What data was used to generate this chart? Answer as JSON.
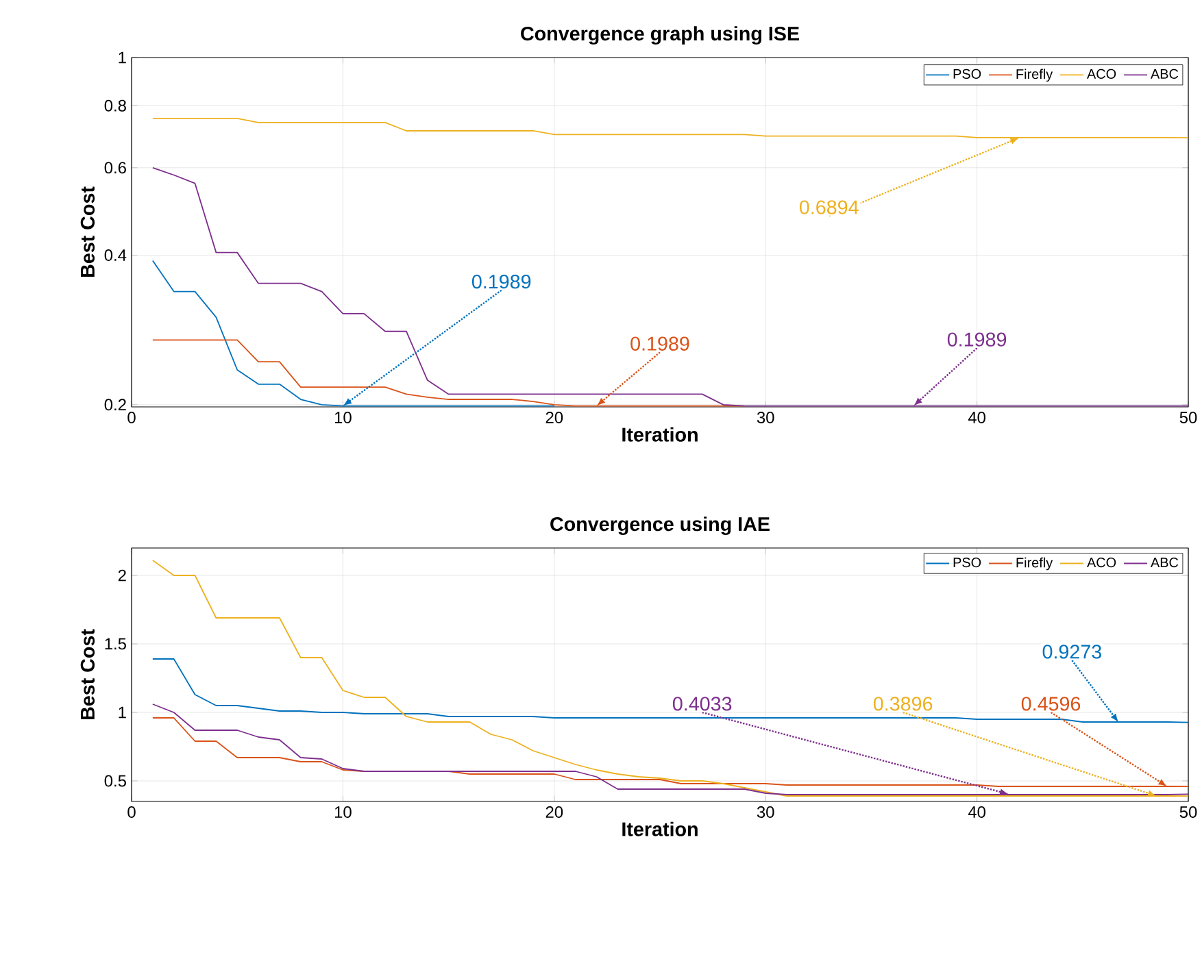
{
  "chart_data": [
    {
      "type": "line",
      "title": "Convergence graph using ISE",
      "xlabel": "Iteration",
      "ylabel": "Best Cost",
      "log": "y",
      "grid": true,
      "legend": "top right",
      "marker": "none",
      "line_style": "solid",
      "xlim": [
        0,
        50
      ],
      "xticks": [
        0,
        10,
        20,
        30,
        40,
        50
      ],
      "ylim": [
        0.198,
        1
      ],
      "yticks": [
        0.2,
        0.4,
        0.6,
        0.8,
        1
      ],
      "x": [
        1,
        2,
        3,
        4,
        5,
        6,
        7,
        8,
        9,
        10,
        11,
        12,
        13,
        14,
        15,
        16,
        17,
        18,
        19,
        20,
        21,
        22,
        23,
        24,
        25,
        26,
        27,
        28,
        29,
        30,
        31,
        32,
        33,
        34,
        35,
        36,
        37,
        38,
        39,
        40,
        41,
        42,
        43,
        44,
        45,
        46,
        47,
        48,
        49,
        50
      ],
      "series": [
        {
          "name": "PSO",
          "color": "#0072bd",
          "values": [
            0.39,
            0.338,
            0.338,
            0.3,
            0.235,
            0.22,
            0.22,
            0.205,
            0.2,
            0.1989,
            0.1989,
            0.1989,
            0.1989,
            0.1989,
            0.1989,
            0.1989,
            0.1989,
            0.1989,
            0.1989,
            0.1989,
            null,
            null,
            null,
            null,
            null,
            null,
            null,
            null,
            null,
            null,
            null,
            null,
            null,
            null,
            null,
            null,
            null,
            null,
            null,
            null,
            null,
            null,
            null,
            null,
            null,
            null,
            null,
            null,
            null,
            null
          ]
        },
        {
          "name": "Firefly",
          "color": "#d95319",
          "values": [
            0.27,
            0.27,
            0.27,
            0.27,
            0.27,
            0.244,
            0.244,
            0.217,
            0.217,
            0.217,
            0.217,
            0.217,
            0.21,
            0.207,
            0.205,
            0.205,
            0.205,
            0.205,
            0.203,
            0.2,
            0.1989,
            0.1989,
            0.1989,
            0.1989,
            0.1989,
            0.1989,
            0.1989,
            0.1989,
            0.1989,
            null,
            null,
            null,
            null,
            null,
            null,
            null,
            null,
            null,
            null,
            null,
            null,
            null,
            null,
            null,
            null,
            null,
            null,
            null,
            null,
            null
          ]
        },
        {
          "name": "ACO",
          "color": "#edb120",
          "values": [
            0.754,
            0.754,
            0.754,
            0.754,
            0.754,
            0.74,
            0.74,
            0.74,
            0.74,
            0.74,
            0.74,
            0.74,
            0.712,
            0.712,
            0.712,
            0.712,
            0.712,
            0.712,
            0.712,
            0.7,
            0.7,
            0.7,
            0.7,
            0.7,
            0.7,
            0.7,
            0.7,
            0.7,
            0.7,
            0.695,
            0.695,
            0.695,
            0.695,
            0.695,
            0.695,
            0.695,
            0.695,
            0.695,
            0.695,
            0.69,
            0.69,
            0.69,
            0.69,
            0.69,
            0.69,
            0.69,
            0.69,
            0.69,
            0.69,
            0.6894
          ]
        },
        {
          "name": "ABC",
          "color": "#7e2f8e",
          "values": [
            0.6,
            0.58,
            0.558,
            0.405,
            0.405,
            0.351,
            0.351,
            0.351,
            0.338,
            0.305,
            0.305,
            0.281,
            0.281,
            0.224,
            0.21,
            0.21,
            0.21,
            0.21,
            0.21,
            0.21,
            0.21,
            0.21,
            0.21,
            0.21,
            0.21,
            0.21,
            0.21,
            0.2,
            0.1989,
            0.1989,
            0.1989,
            0.1989,
            0.1989,
            0.1989,
            0.1989,
            0.1989,
            0.1989,
            0.1989,
            0.1989,
            0.1989,
            0.1989,
            0.1989,
            0.1989,
            0.1989,
            0.1989,
            0.1989,
            0.1989,
            0.1989,
            0.1989,
            0.1989
          ]
        }
      ],
      "annotations": [
        {
          "text": "0.1989",
          "x": 10,
          "y": 0.1989
        },
        {
          "text": "0.1989",
          "x": 22,
          "y": 0.1989
        },
        {
          "text": "0.6894",
          "x": 42,
          "y": 0.6894
        },
        {
          "text": "0.1989",
          "x": 37,
          "y": 0.1989
        }
      ]
    },
    {
      "type": "line",
      "title": "Convergence using IAE",
      "xlabel": "Iteration",
      "ylabel": "Best Cost",
      "grid": true,
      "legend": "top right",
      "marker": "none",
      "line_style": "solid",
      "xlim": [
        0,
        50
      ],
      "xticks": [
        0,
        10,
        20,
        30,
        40,
        50
      ],
      "ylim": [
        0.35,
        2.2
      ],
      "yticks": [
        0.5,
        1,
        1.5,
        2
      ],
      "x": [
        1,
        2,
        3,
        4,
        5,
        6,
        7,
        8,
        9,
        10,
        11,
        12,
        13,
        14,
        15,
        16,
        17,
        18,
        19,
        20,
        21,
        22,
        23,
        24,
        25,
        26,
        27,
        28,
        29,
        30,
        31,
        32,
        33,
        34,
        35,
        36,
        37,
        38,
        39,
        40,
        41,
        42,
        43,
        44,
        45,
        46,
        47,
        48,
        49,
        50
      ],
      "series": [
        {
          "name": "PSO",
          "color": "#0072bd",
          "values": [
            1.39,
            1.39,
            1.13,
            1.05,
            1.05,
            1.03,
            1.01,
            1.01,
            1.0,
            1.0,
            0.99,
            0.99,
            0.99,
            0.99,
            0.97,
            0.97,
            0.97,
            0.97,
            0.97,
            0.96,
            0.96,
            0.96,
            0.96,
            0.96,
            0.96,
            0.96,
            0.96,
            0.96,
            0.96,
            0.96,
            0.96,
            0.96,
            0.96,
            0.96,
            0.96,
            0.96,
            0.96,
            0.96,
            0.96,
            0.95,
            0.95,
            0.95,
            0.95,
            0.95,
            0.93,
            0.93,
            0.93,
            0.93,
            0.93,
            0.9273
          ]
        },
        {
          "name": "Firefly",
          "color": "#d95319",
          "values": [
            0.96,
            0.96,
            0.79,
            0.79,
            0.67,
            0.67,
            0.67,
            0.64,
            0.64,
            0.58,
            0.57,
            null,
            null,
            null,
            0.57,
            0.55,
            0.55,
            0.55,
            0.55,
            0.55,
            0.51,
            0.51,
            0.51,
            0.51,
            0.51,
            0.48,
            0.48,
            0.48,
            0.48,
            0.48,
            0.47,
            0.47,
            0.47,
            0.47,
            0.47,
            0.47,
            0.47,
            0.47,
            0.47,
            0.47,
            0.46,
            0.46,
            0.46,
            0.46,
            0.46,
            0.46,
            0.46,
            0.46,
            0.46,
            0.4596
          ]
        },
        {
          "name": "ACO",
          "color": "#edb120",
          "values": [
            2.11,
            2.0,
            2.0,
            1.69,
            1.69,
            1.69,
            1.69,
            1.4,
            1.4,
            1.16,
            1.11,
            1.11,
            0.97,
            0.93,
            0.93,
            0.93,
            0.84,
            0.8,
            0.72,
            0.67,
            0.62,
            0.58,
            0.55,
            0.53,
            0.52,
            0.5,
            0.5,
            0.48,
            0.45,
            0.42,
            0.39,
            0.39,
            0.39,
            0.39,
            0.39,
            0.39,
            0.39,
            0.39,
            0.39,
            0.39,
            0.39,
            0.39,
            0.39,
            0.39,
            0.39,
            0.39,
            0.39,
            0.39,
            0.39,
            0.3896
          ]
        },
        {
          "name": "ABC",
          "color": "#7e2f8e",
          "values": [
            1.06,
            1.0,
            0.87,
            0.87,
            0.87,
            0.82,
            0.8,
            0.67,
            0.66,
            0.59,
            0.57,
            0.57,
            0.57,
            0.57,
            0.57,
            0.57,
            0.57,
            0.57,
            0.57,
            0.57,
            0.57,
            0.53,
            0.44,
            0.44,
            0.44,
            0.44,
            0.44,
            0.44,
            0.44,
            0.41,
            0.4,
            0.4,
            0.4,
            0.4,
            0.4,
            0.4,
            0.4,
            0.4,
            0.4,
            0.4,
            0.4,
            0.4,
            0.4,
            0.4,
            0.4,
            0.4,
            0.4,
            0.4,
            0.4,
            0.4033
          ]
        }
      ],
      "annotations": [
        {
          "text": "0.9273",
          "x": 46.7,
          "y": 0.9273
        },
        {
          "text": "0.4033",
          "x": 41.5,
          "y": 0.4033
        },
        {
          "text": "0.3896",
          "x": 48.5,
          "y": 0.3896
        },
        {
          "text": "0.4596",
          "x": 49,
          "y": 0.4596
        }
      ]
    }
  ]
}
